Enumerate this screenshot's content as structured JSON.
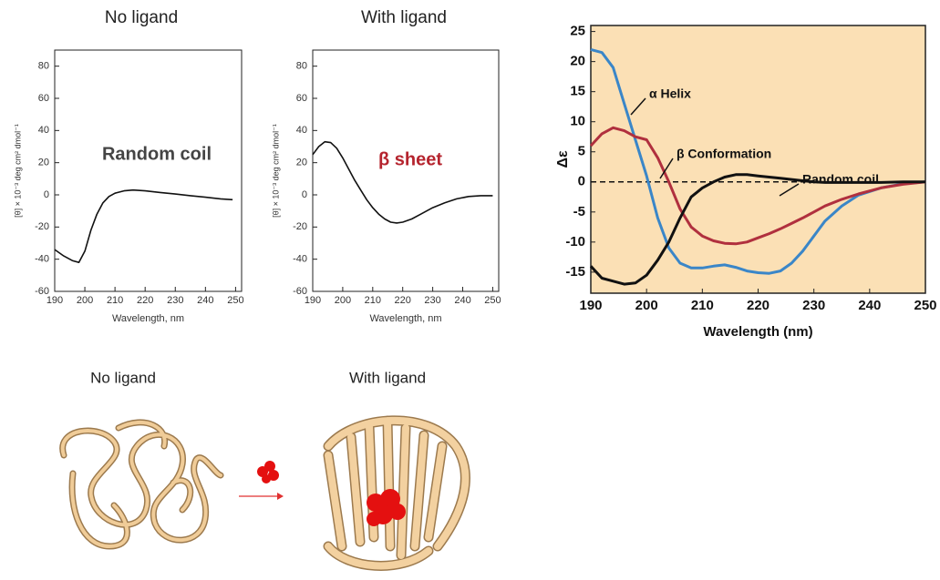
{
  "chart_data": [
    {
      "type": "line",
      "title": "No ligand",
      "annotation": "Random coil",
      "xlabel": "Wavelength, nm",
      "ylabel": "[θ] × 10⁻³ deg cm² dmol⁻¹",
      "x": [
        190,
        193,
        196,
        198,
        200,
        202,
        204,
        206,
        208,
        210,
        213,
        216,
        220,
        225,
        230,
        235,
        240,
        245,
        249
      ],
      "values": [
        -34,
        -38,
        -41,
        -42,
        -35,
        -22,
        -12,
        -5,
        -1,
        1,
        2.5,
        3,
        2.5,
        1.5,
        0.5,
        -0.5,
        -1.5,
        -2.5,
        -3
      ],
      "color": "#111111",
      "annotation_color": "#444444",
      "xlim": [
        190,
        252
      ],
      "ylim": [
        -60,
        90
      ],
      "xticks": [
        190,
        200,
        210,
        220,
        230,
        240,
        250
      ],
      "yticks": [
        -60,
        -40,
        -20,
        0,
        20,
        40,
        60,
        80
      ]
    },
    {
      "type": "line",
      "title": "With ligand",
      "annotation": "β sheet",
      "xlabel": "Wavelength, nm",
      "ylabel": "[θ] × 10⁻³ deg cm² dmol⁻¹",
      "x": [
        190,
        192,
        194,
        196,
        198,
        200,
        202,
        204,
        206,
        208,
        210,
        212,
        214,
        216,
        218,
        220,
        223,
        226,
        230,
        234,
        238,
        242,
        246,
        250
      ],
      "values": [
        25,
        30,
        33,
        32.5,
        29,
        23,
        16,
        9,
        3,
        -3,
        -8,
        -12,
        -15,
        -17,
        -17.5,
        -17,
        -15,
        -12,
        -8,
        -5,
        -2.5,
        -1,
        -0.5,
        -0.5
      ],
      "color": "#111111",
      "annotation_color": "#b5242e",
      "xlim": [
        190,
        252
      ],
      "ylim": [
        -60,
        90
      ],
      "xticks": [
        190,
        200,
        210,
        220,
        230,
        240,
        250
      ],
      "yticks": [
        -60,
        -40,
        -20,
        0,
        20,
        40,
        60,
        80
      ]
    },
    {
      "type": "line",
      "xlabel": "Wavelength (nm)",
      "ylabel": "Δε",
      "background": "#fbe0b5",
      "zero_line": true,
      "x": [
        190,
        192,
        194,
        196,
        198,
        200,
        202,
        204,
        206,
        208,
        210,
        212,
        214,
        216,
        218,
        220,
        222,
        224,
        226,
        228,
        230,
        232,
        235,
        238,
        242,
        246,
        250
      ],
      "series": [
        {
          "name": "α Helix",
          "color": "#3a86c8",
          "values": [
            22,
            21.5,
            19,
            13,
            7,
            1,
            -6,
            -11,
            -13.5,
            -14.3,
            -14.3,
            -14,
            -13.8,
            -14.2,
            -14.8,
            -15.1,
            -15.2,
            -14.8,
            -13.5,
            -11.5,
            -9,
            -6.5,
            -4,
            -2.2,
            -1,
            -0.3,
            0
          ]
        },
        {
          "name": "β Conformation",
          "color": "#b0303e",
          "values": [
            6,
            8,
            9,
            8.5,
            7.5,
            7,
            4,
            0,
            -4.5,
            -7.5,
            -9,
            -9.8,
            -10.2,
            -10.3,
            -10,
            -9.3,
            -8.6,
            -7.8,
            -6.9,
            -6,
            -5,
            -4,
            -2.9,
            -2,
            -1,
            -0.4,
            0
          ]
        },
        {
          "name": "Random coil",
          "color": "#111111",
          "values": [
            -14,
            -16,
            -16.5,
            -17,
            -16.8,
            -15.5,
            -13,
            -10,
            -6,
            -2.5,
            -1,
            0,
            0.8,
            1.2,
            1.2,
            1,
            0.8,
            0.6,
            0.4,
            0.2,
            0,
            -0.1,
            -0.1,
            -0.1,
            -0.1,
            0,
            0
          ]
        }
      ],
      "xlim": [
        190,
        250
      ],
      "ylim": [
        -18.5,
        26
      ],
      "xticks": [
        190,
        200,
        210,
        220,
        230,
        240,
        250
      ],
      "yticks": [
        -15,
        -10,
        -5,
        0,
        5,
        10,
        15,
        20,
        25
      ]
    }
  ],
  "illustration": {
    "left_label": "No ligand",
    "right_label": "With ligand"
  }
}
